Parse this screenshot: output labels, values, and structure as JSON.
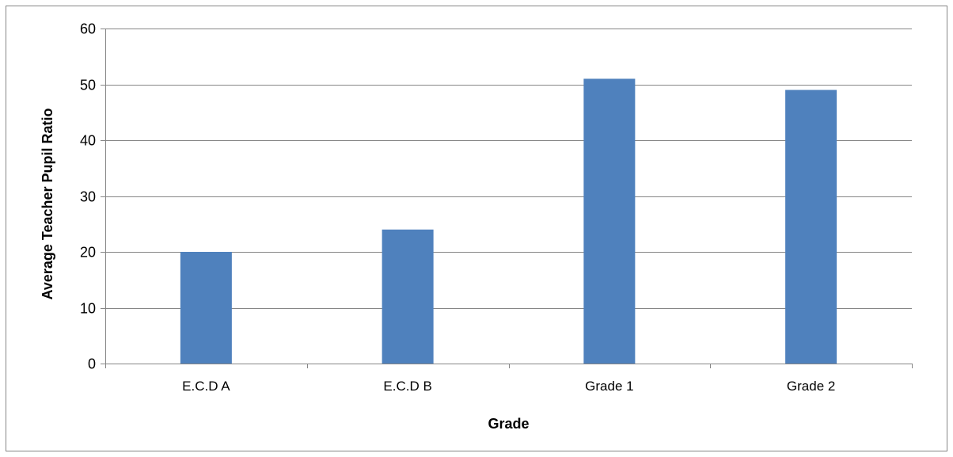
{
  "chart_data": {
    "type": "bar",
    "categories": [
      "E.C.D A",
      "E.C.D B",
      "Grade 1",
      "Grade 2"
    ],
    "values": [
      20,
      24,
      51,
      49
    ],
    "title": "",
    "xlabel": "Grade",
    "ylabel": "Average Teacher Pupil Ratio",
    "ylim": [
      0,
      60
    ],
    "yticks": [
      0,
      10,
      20,
      30,
      40,
      50,
      60
    ],
    "grid": true,
    "legend": "none",
    "colors": {
      "bar": "#4f81bd",
      "grid": "#868686",
      "axis": "#868686",
      "border": "#868686"
    }
  }
}
